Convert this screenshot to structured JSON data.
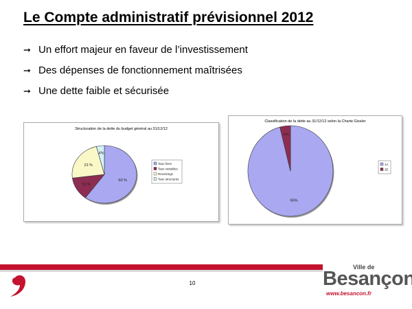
{
  "slide": {
    "title": "Le Compte administratif prévisionnel 2012",
    "bullet_icon": "right-arrow-icon",
    "bullets": [
      "Un effort majeur en faveur de l’investissement",
      "Des dépenses de fonctionnement maîtrisées",
      "Une dette faible et sécurisée"
    ],
    "page_number": "10"
  },
  "logo": {
    "ville_de": "Ville de",
    "name": "Besançon",
    "url": "www.besancon.fr"
  },
  "colors": {
    "accent_red": "#c4122f",
    "pie_blue": "#a9a8f0",
    "pie_maroon": "#8e2d52",
    "pie_cream": "#fbf8c8",
    "pie_cyan": "#d3f0f5"
  },
  "chart_data": [
    {
      "type": "pie",
      "title": "Structuration de la dette du budget général au 31/12/12",
      "series": [
        {
          "label": "Taux fixes",
          "value": 60,
          "data_label": "60 %",
          "color": "#a9a8f0"
        },
        {
          "label": "Taux variables",
          "value": 13,
          "data_label": "13 %",
          "color": "#8e2d52"
        },
        {
          "label": "Revolvings",
          "value": 23,
          "data_label": "23 %",
          "color": "#fbf8c8"
        },
        {
          "label": "Taux structurés",
          "value": 4,
          "data_label": "4%",
          "color": "#d3f0f5"
        }
      ],
      "legend_position": "right"
    },
    {
      "type": "pie",
      "title": "Classification de la dette au 31/12/12 selon la Charte Gissler",
      "series": [
        {
          "label": "1A",
          "value": 96,
          "data_label": "96%",
          "color": "#a9a8f0"
        },
        {
          "label": "3E",
          "value": 4,
          "data_label": "4%",
          "color": "#8e2d52"
        }
      ],
      "legend_position": "right"
    }
  ]
}
